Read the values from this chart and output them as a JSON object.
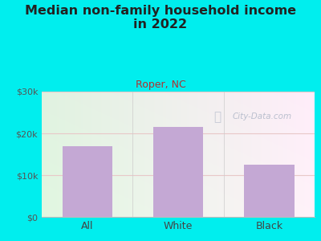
{
  "title_line1": "Median non-family household income",
  "title_line2": "in 2022",
  "subtitle": "Roper, NC",
  "categories": [
    "All",
    "White",
    "Black"
  ],
  "values": [
    17000,
    21500,
    12500
  ],
  "bar_color": "#c4a8d4",
  "ylim": [
    0,
    30000
  ],
  "yticks": [
    0,
    10000,
    20000,
    30000
  ],
  "ytick_labels": [
    "$0",
    "$10k",
    "$20k",
    "$30k"
  ],
  "bg_outer": "#00EEEE",
  "title_color": "#222222",
  "subtitle_color": "#b03030",
  "tick_label_color": "#555555",
  "xlabel_color": "#444444",
  "watermark_text": "City-Data.com",
  "watermark_color": "#b0b8c8",
  "grid_color": "#e8c8c8",
  "axis_line_color": "#bbbbbb",
  "title_fontsize": 11.5,
  "subtitle_fontsize": 9
}
